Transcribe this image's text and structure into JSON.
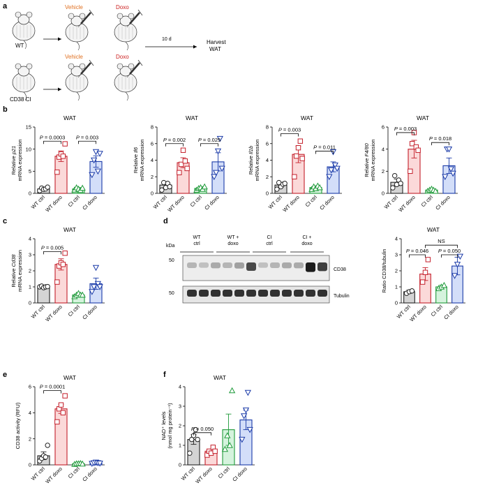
{
  "panel_a": {
    "letter": "a",
    "wt_label": "WT",
    "cd38_label": "CD38 CI",
    "vehicle": "Vehicle",
    "doxo": "Doxo",
    "days": "10 d",
    "harvest": "Harvest",
    "harvest_tissue": "WAT",
    "colors": {
      "vehicle": "#e07020",
      "doxo": "#cc2020"
    }
  },
  "panel_d_blot": {
    "kda": "kDa",
    "marker_50a": "50",
    "marker_50b": "50",
    "lanes": [
      "WT\nctrl",
      "WT +\ndoxo",
      "CI\nctrl",
      "CI +\ndoxo"
    ],
    "band1": "CD38",
    "band2": "Tubulin"
  },
  "chart_data": [
    {
      "panel": "b",
      "type": "bar",
      "title": "WAT",
      "ylabel_pre": "Relative ",
      "ylabel_gene": "p21",
      "ylabel_post": "mRNA expression",
      "categories": [
        "WT ctrl",
        "WT doxo",
        "CI ctrl",
        "CI doxo"
      ],
      "values": [
        1.0,
        8.4,
        1.0,
        7.2
      ],
      "errors": [
        0.3,
        1.2,
        0.3,
        1.3
      ],
      "points": [
        [
          0.6,
          1.2,
          0.9,
          1.0,
          1.4
        ],
        [
          4.8,
          8.2,
          8.9,
          8.4,
          11.2
        ],
        [
          0.8,
          1.3,
          1.0,
          0.7,
          1.2
        ],
        [
          4.2,
          7.5,
          9.4,
          5.0,
          9.0
        ]
      ],
      "ylim": [
        0,
        15
      ],
      "yticks": [
        0,
        5,
        10,
        15
      ],
      "stats": [
        {
          "label": "P = 0.0003",
          "from": 0,
          "to": 1,
          "y": 11.8
        },
        {
          "label": "P = 0.003",
          "from": 2,
          "to": 3,
          "y": 11.8
        }
      ]
    },
    {
      "panel": "b2",
      "type": "bar",
      "title": "WAT",
      "ylabel_pre": "Relative ",
      "ylabel_gene": "Il6",
      "ylabel_post": "mRNA expression",
      "categories": [
        "WT ctrl",
        "WT doxo",
        "CI ctrl",
        "CI doxo"
      ],
      "values": [
        1.0,
        3.7,
        0.6,
        3.8
      ],
      "errors": [
        0.3,
        0.6,
        0.15,
        1.1
      ],
      "points": [
        [
          0.4,
          1.3,
          0.7,
          1.2,
          0.8
        ],
        [
          2.5,
          3.5,
          5.2,
          3.9,
          3.0
        ],
        [
          0.4,
          0.6,
          0.7,
          0.5,
          0.8
        ],
        [
          2.0,
          2.5,
          5.1,
          6.6,
          3.0
        ]
      ],
      "ylim": [
        0,
        8
      ],
      "yticks": [
        0,
        2,
        4,
        6,
        8
      ],
      "stats": [
        {
          "label": "P = 0.002",
          "from": 0,
          "to": 1,
          "y": 6.0
        },
        {
          "label": "P = 0.025",
          "from": 2,
          "to": 3,
          "y": 6.0
        }
      ]
    },
    {
      "panel": "b3",
      "type": "bar",
      "title": "WAT",
      "ylabel_pre": "Relative ",
      "ylabel_gene": "Il1b",
      "ylabel_post": "mRNA expression",
      "categories": [
        "WT ctrl",
        "WT doxo",
        "CI ctrl",
        "CI doxo"
      ],
      "values": [
        1.0,
        4.7,
        0.7,
        3.2
      ],
      "errors": [
        0.25,
        1.0,
        0.15,
        0.6
      ],
      "points": [
        [
          0.5,
          1.3,
          0.8,
          1.1,
          1.2
        ],
        [
          2.0,
          4.5,
          5.5,
          6.3,
          4.2
        ],
        [
          0.5,
          0.8,
          0.6,
          0.9,
          0.7
        ],
        [
          2.0,
          2.8,
          5.0,
          3.4,
          3.0
        ]
      ],
      "ylim": [
        0,
        8
      ],
      "yticks": [
        0,
        2,
        4,
        6,
        8
      ],
      "stats": [
        {
          "label": "P = 0.003",
          "from": 0,
          "to": 1,
          "y": 7.2
        },
        {
          "label": "P = 0.011",
          "from": 2,
          "to": 3,
          "y": 5.1
        }
      ]
    },
    {
      "panel": "b4",
      "type": "bar",
      "title": "WAT",
      "ylabel_pre": "Relative ",
      "ylabel_gene": "F4/80",
      "ylabel_post": "mRNA expression",
      "categories": [
        "WT ctrl",
        "WT doxo",
        "CI ctrl",
        "CI doxo"
      ],
      "values": [
        1.0,
        4.0,
        0.3,
        2.5
      ],
      "errors": [
        0.3,
        0.8,
        0.1,
        0.7
      ],
      "points": [
        [
          0.5,
          1.6,
          0.8,
          1.2,
          0.9
        ],
        [
          2.0,
          4.5,
          5.5,
          4.2,
          3.9
        ],
        [
          0.2,
          0.3,
          0.4,
          0.3,
          0.2
        ],
        [
          1.5,
          4.0,
          4.0,
          2.2,
          1.8
        ]
      ],
      "ylim": [
        0,
        6
      ],
      "yticks": [
        0,
        2,
        4,
        6
      ],
      "stats": [
        {
          "label": "P = 0.003",
          "from": 0,
          "to": 1,
          "y": 5.5
        },
        {
          "label": "P = 0.018",
          "from": 2,
          "to": 3,
          "y": 4.6
        }
      ]
    },
    {
      "panel": "c",
      "type": "bar",
      "title": "WAT",
      "ylabel_pre": "Relative ",
      "ylabel_gene": "Cd38",
      "ylabel_post": "mRNA expression",
      "categories": [
        "WT ctrl",
        "WT doxo",
        "CI ctrl",
        "CI doxo"
      ],
      "values": [
        1.0,
        2.4,
        0.5,
        1.2
      ],
      "errors": [
        0.05,
        0.35,
        0.08,
        0.35
      ],
      "points": [
        [
          1.0,
          1.05,
          0.95,
          1.0,
          1.02
        ],
        [
          1.3,
          2.3,
          2.5,
          2.4,
          3.1
        ],
        [
          0.4,
          0.5,
          0.6,
          0.5,
          0.5
        ],
        [
          0.7,
          1.0,
          2.2,
          1.2,
          1.0
        ]
      ],
      "ylim": [
        0,
        4
      ],
      "yticks": [
        0,
        1,
        2,
        3,
        4
      ],
      "stats": [
        {
          "label": "P = 0.005",
          "from": 0,
          "to": 1,
          "y": 3.2
        }
      ]
    },
    {
      "panel": "d",
      "type": "bar",
      "title": "WAT",
      "ylabel_pre": "",
      "ylabel_gene": "",
      "ylabel_post": "Ratio CD38/tubulin",
      "categories": [
        "WT ctrl",
        "WT doxo",
        "CI ctrl",
        "CI doxo"
      ],
      "values": [
        0.7,
        1.8,
        1.0,
        2.3
      ],
      "errors": [
        0.1,
        0.4,
        0.1,
        0.55
      ],
      "points": [
        [
          0.6,
          0.7,
          0.75
        ],
        [
          1.3,
          1.9,
          2.7
        ],
        [
          0.9,
          1.0,
          1.1
        ],
        [
          1.7,
          2.4,
          2.9
        ]
      ],
      "ylim": [
        0,
        4
      ],
      "yticks": [
        0,
        1,
        2,
        3,
        4
      ],
      "stats": [
        {
          "label": "P = 0.046",
          "from": 0,
          "to": 1,
          "y": 3.0
        },
        {
          "label": "P = 0.050",
          "from": 2,
          "to": 3,
          "y": 3.0
        },
        {
          "label": "NS",
          "from": 1,
          "to": 3,
          "y": 3.6
        }
      ]
    },
    {
      "panel": "e",
      "type": "bar",
      "title": "WAT",
      "ylabel_pre": "",
      "ylabel_gene": "",
      "ylabel_post": "CD38 activity (RFU)",
      "categories": [
        "WT ctrl",
        "WT doxo",
        "CI ctrl",
        "CI doxo"
      ],
      "values": [
        0.7,
        4.3,
        0.1,
        0.15
      ],
      "errors": [
        0.3,
        0.35,
        0.03,
        0.05
      ],
      "points": [
        [
          0.3,
          0.5,
          0.7,
          0.6,
          1.5
        ],
        [
          3.3,
          4.3,
          4.6,
          4.0,
          5.3
        ],
        [
          0.05,
          0.1,
          0.1,
          0.12,
          0.08
        ],
        [
          0.1,
          0.15,
          0.2,
          0.15,
          0.12
        ]
      ],
      "ylim": [
        0,
        6
      ],
      "yticks": [
        0,
        2,
        4,
        6
      ],
      "stats": [
        {
          "label": "P = 0.0001",
          "from": 0,
          "to": 1,
          "y": 5.7
        }
      ]
    },
    {
      "panel": "f",
      "type": "bar",
      "title": "WAT",
      "ylabel_pre": "",
      "ylabel_gene": "",
      "ylabel_post": "NAD⁺ levels",
      "ylabel_line2": "(nmol mg protein⁻¹)",
      "categories": [
        "WT ctrl",
        "WT doxo",
        "CI ctrl",
        "CI doxo"
      ],
      "values": [
        1.3,
        0.7,
        1.8,
        2.3
      ],
      "errors": [
        0.25,
        0.1,
        0.8,
        0.5
      ],
      "points": [
        [
          0.6,
          1.3,
          1.5,
          1.8,
          1.3
        ],
        [
          0.5,
          0.7,
          0.6,
          0.9,
          0.7
        ],
        [
          0.8,
          1.5,
          1.0,
          3.8
        ],
        [
          1.3,
          2.5,
          2.8,
          3.7,
          1.8
        ]
      ],
      "ylim": [
        0,
        4
      ],
      "yticks": [
        0,
        1,
        2,
        3,
        4
      ],
      "stats": [
        {
          "label": "P = 0.050",
          "from": 0,
          "to": 1,
          "y": 1.65
        }
      ]
    }
  ],
  "group_styles": {
    "fills": [
      "#d4d4d4",
      "#fbd9d9",
      "#d5f3dd",
      "#d3def9"
    ],
    "strokes": [
      "#222222",
      "#c41e2a",
      "#1f9a3a",
      "#1a3aa8"
    ],
    "markers": [
      "circle",
      "square",
      "triangle-up",
      "triangle-down"
    ]
  },
  "panel_letters": [
    "b",
    "c",
    "d",
    "e",
    "f"
  ]
}
